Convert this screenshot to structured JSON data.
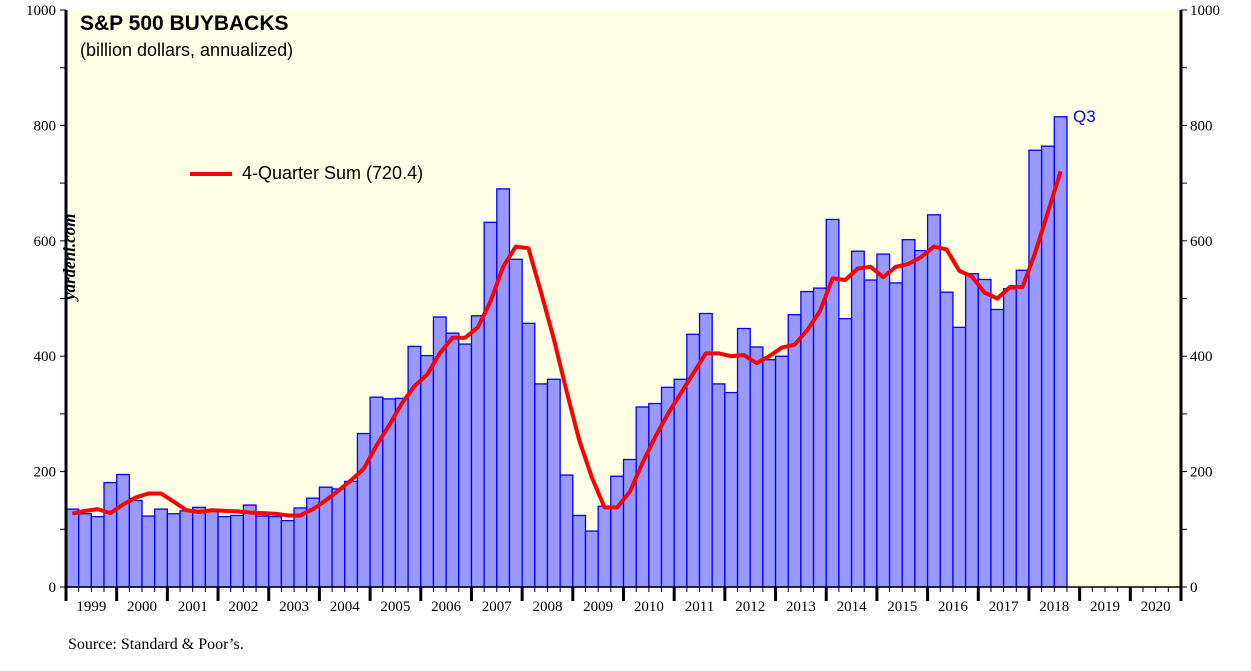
{
  "chart_data": {
    "type": "bar",
    "title": "S&P 500 BUYBACKS",
    "subtitle": "(billion dollars, annualized)",
    "ylim": [
      0,
      1000
    ],
    "yticks": [
      0,
      200,
      400,
      600,
      800,
      1000
    ],
    "xlim_years": [
      1999,
      2020
    ],
    "x_tick_labels": [
      "1999",
      "2000",
      "2001",
      "2002",
      "2003",
      "2004",
      "2005",
      "2006",
      "2007",
      "2008",
      "2009",
      "2010",
      "2011",
      "2012",
      "2013",
      "2014",
      "2015",
      "2016",
      "2017",
      "2018",
      "2019",
      "2020"
    ],
    "grid": false,
    "legend_position": "top-left",
    "bar_color": "#9999ff",
    "bar_edge_color": "#0000ff",
    "line_color": "#ff0000",
    "background_color": "#ffffe6",
    "first_quarter": "1999 Q1",
    "last_label": "Q3",
    "series": [
      {
        "type": "bar",
        "values": [
          135,
          127,
          122,
          181,
          195,
          150,
          123,
          135,
          127,
          132,
          138,
          133,
          122,
          124,
          142,
          123,
          122,
          115,
          137,
          154,
          173,
          170,
          183,
          266,
          329,
          326,
          327,
          417,
          401,
          468,
          440,
          421,
          470,
          632,
          690,
          568,
          457,
          352,
          360,
          194,
          124,
          97,
          140,
          192,
          221,
          312,
          318,
          346,
          360,
          438,
          474,
          352,
          337,
          448,
          416,
          394,
          400,
          472,
          512,
          518,
          637,
          465,
          582,
          532,
          577,
          527,
          602,
          583,
          645,
          511,
          450,
          543,
          533,
          481,
          517,
          549,
          757,
          764,
          815
        ]
      },
      {
        "type": "line",
        "name": "4-Quarter Sum (720.4)",
        "values": [
          127,
          132,
          135,
          128,
          143,
          155,
          162,
          162,
          148,
          133,
          130,
          133,
          132,
          131,
          129,
          128,
          127,
          124,
          124,
          135,
          150,
          167,
          185,
          205,
          245,
          280,
          318,
          348,
          368,
          405,
          432,
          432,
          450,
          495,
          555,
          590,
          587,
          510,
          430,
          340,
          255,
          190,
          138,
          138,
          165,
          215,
          260,
          300,
          335,
          370,
          405,
          405,
          400,
          402,
          388,
          400,
          415,
          420,
          445,
          478,
          535,
          532,
          552,
          555,
          537,
          555,
          560,
          572,
          590,
          585,
          548,
          538,
          510,
          500,
          520,
          520,
          580,
          650,
          720.4
        ]
      }
    ]
  },
  "watermark": "yardeni.com",
  "source": "Source: Standard & Poor’s."
}
